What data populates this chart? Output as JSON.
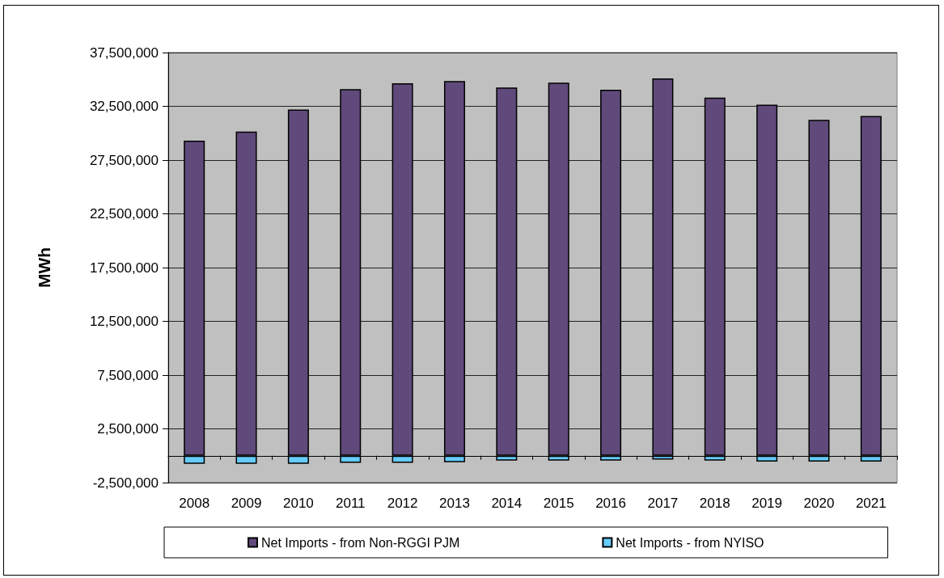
{
  "chart_data": {
    "type": "bar",
    "stacked": true,
    "ylabel": "MWh",
    "categories": [
      "2008",
      "2009",
      "2010",
      "2011",
      "2012",
      "2013",
      "2014",
      "2015",
      "2016",
      "2017",
      "2018",
      "2019",
      "2020",
      "2021"
    ],
    "series": [
      {
        "name": "Net Imports - from Non-RGGI PJM",
        "color": "#604a7b",
        "values": [
          29300000,
          30150000,
          32200000,
          34100000,
          34650000,
          34850000,
          34250000,
          34700000,
          34050000,
          35100000,
          33300000,
          32650000,
          31250000,
          31600000
        ]
      },
      {
        "name": "Net Imports - from NYISO",
        "color": "#66ccff",
        "values": [
          -750000,
          -750000,
          -750000,
          -650000,
          -650000,
          -600000,
          -450000,
          -450000,
          -450000,
          -350000,
          -450000,
          -550000,
          -550000,
          -550000
        ]
      }
    ],
    "ylim": [
      -2500000,
      37500000
    ],
    "yticks": [
      {
        "value": -2500000,
        "label": "-2,500,000"
      },
      {
        "value": 2500000,
        "label": "2,500,000"
      },
      {
        "value": 7500000,
        "label": "7,500,000"
      },
      {
        "value": 12500000,
        "label": "12,500,000"
      },
      {
        "value": 17500000,
        "label": "17,500,000"
      },
      {
        "value": 22500000,
        "label": "22,500,000"
      },
      {
        "value": 27500000,
        "label": "27,500,000"
      },
      {
        "value": 32500000,
        "label": "32,500,000"
      },
      {
        "value": 37500000,
        "label": "37,500,000"
      }
    ],
    "grid": "y",
    "legend": "bottom"
  }
}
